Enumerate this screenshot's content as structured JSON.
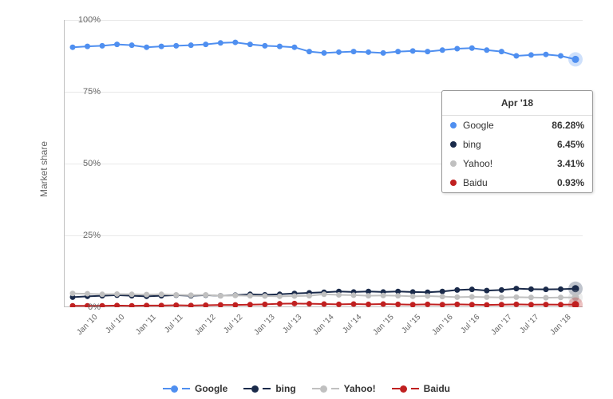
{
  "chart": {
    "type": "line",
    "y_axis_title": "Market share",
    "ylim": [
      0,
      100
    ],
    "ytick_step": 25,
    "ytick_labels": [
      "0%",
      "25%",
      "50%",
      "75%",
      "100%"
    ],
    "x_categories": [
      "Jan '10",
      "Jul '10",
      "Jan '11",
      "Jul '11",
      "Jan '12",
      "Jul '12",
      "Jan '13",
      "Jul '13",
      "Jan '14",
      "Jul '14",
      "Jan '15",
      "Jul '15",
      "Jan '16",
      "Jul '16",
      "Jan '17",
      "Jul '17",
      "Jan '18"
    ],
    "n_points": 35,
    "background_color": "#ffffff",
    "grid_color": "#e8e8e8",
    "axis_color": "#c0c0c0",
    "label_fontsize": 11,
    "tick_fontsize": 10,
    "marker_size": 3.5,
    "line_width": 2,
    "series": [
      {
        "name": "Google",
        "color": "#4f8ff0",
        "values": [
          90.5,
          90.8,
          91.0,
          91.5,
          91.2,
          90.5,
          90.8,
          91.0,
          91.2,
          91.5,
          92.0,
          92.2,
          91.5,
          91.0,
          90.8,
          90.5,
          89.0,
          88.5,
          88.8,
          89.0,
          88.8,
          88.5,
          89.0,
          89.2,
          89.0,
          89.5,
          90.0,
          90.2,
          89.5,
          89.0,
          87.5,
          87.8,
          88.0,
          87.5,
          86.28
        ]
      },
      {
        "name": "bing",
        "color": "#1a2a4a",
        "values": [
          3.5,
          3.8,
          4.0,
          4.2,
          4.0,
          3.8,
          4.0,
          4.2,
          4.0,
          4.2,
          4.0,
          4.2,
          4.5,
          4.3,
          4.5,
          4.8,
          5.0,
          5.2,
          5.5,
          5.3,
          5.5,
          5.3,
          5.5,
          5.3,
          5.2,
          5.5,
          6.0,
          6.2,
          5.8,
          6.0,
          6.5,
          6.3,
          6.2,
          6.3,
          6.45
        ]
      },
      {
        "name": "Yahoo!",
        "color": "#c0c0c0",
        "values": [
          4.8,
          4.7,
          4.5,
          4.6,
          4.5,
          4.4,
          4.5,
          4.3,
          4.2,
          4.3,
          4.0,
          4.1,
          4.0,
          3.9,
          3.8,
          3.9,
          4.0,
          4.5,
          4.3,
          4.2,
          4.0,
          4.1,
          4.0,
          3.8,
          3.9,
          3.7,
          3.5,
          3.6,
          3.5,
          3.4,
          3.5,
          3.4,
          3.3,
          3.4,
          3.41
        ]
      },
      {
        "name": "Baidu",
        "color": "#c02020",
        "values": [
          0.5,
          0.5,
          0.5,
          0.6,
          0.5,
          0.6,
          0.6,
          0.7,
          0.6,
          0.7,
          0.8,
          0.8,
          0.9,
          1.0,
          1.2,
          1.3,
          1.2,
          1.1,
          1.0,
          1.1,
          1.0,
          1.1,
          1.0,
          0.9,
          1.0,
          0.9,
          1.0,
          0.9,
          0.8,
          0.9,
          1.0,
          0.9,
          0.95,
          0.9,
          0.93
        ]
      }
    ]
  },
  "tooltip": {
    "title": "Apr '18",
    "rows": [
      {
        "label": "Google",
        "value": "86.28%",
        "color": "#4f8ff0"
      },
      {
        "label": "bing",
        "value": "6.45%",
        "color": "#1a2a4a"
      },
      {
        "label": "Yahoo!",
        "value": "3.41%",
        "color": "#c0c0c0"
      },
      {
        "label": "Baidu",
        "value": "0.93%",
        "color": "#c02020"
      }
    ]
  },
  "legend": {
    "items": [
      {
        "label": "Google",
        "color": "#4f8ff0"
      },
      {
        "label": "bing",
        "color": "#1a2a4a"
      },
      {
        "label": "Yahoo!",
        "color": "#c0c0c0"
      },
      {
        "label": "Baidu",
        "color": "#c02020"
      }
    ]
  }
}
